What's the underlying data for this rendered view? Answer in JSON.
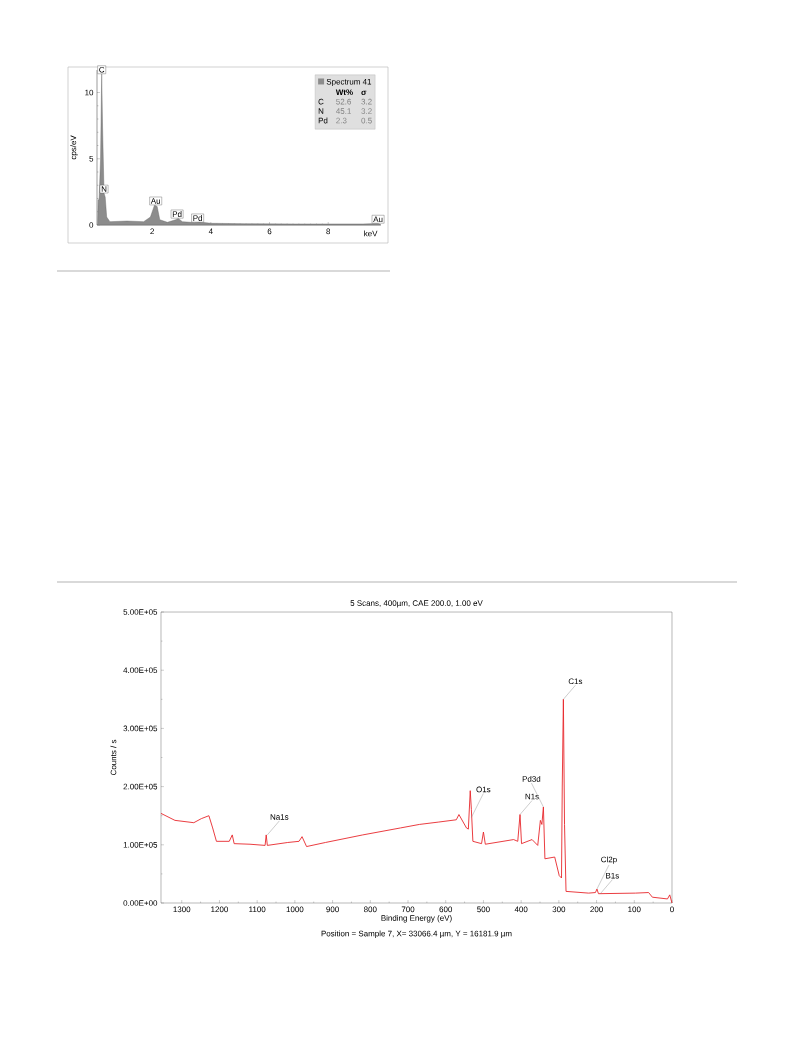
{
  "chart_data": [
    {
      "type": "area",
      "ylabel": "cps/eV",
      "xlabel": "keV",
      "legend": "top right",
      "xlim": [
        0.12,
        9.8
      ],
      "ylim": [
        0,
        11.7
      ],
      "xticks": [
        2,
        4,
        6,
        8
      ],
      "yticks": [
        0,
        5,
        10
      ],
      "x": [
        0.14,
        0.16,
        0.19,
        0.24,
        0.28,
        0.31,
        0.36,
        0.4,
        0.45,
        0.56,
        1.14,
        1.71,
        1.94,
        2.08,
        2.17,
        2.26,
        2.52,
        2.8,
        2.89,
        3.03,
        3.44,
        3.61,
        4.01,
        5.16,
        6.89,
        9.18,
        9.7,
        9.78
      ],
      "series": [
        {
          "name": "Spectrum 41",
          "color": "#8c8c8c",
          "values": [
            0,
            1.9,
            1.9,
            4.9,
            11.4,
            7.4,
            2.4,
            2.1,
            0.6,
            0.25,
            0.3,
            0.25,
            0.6,
            1.5,
            1.4,
            0.4,
            0.2,
            0.4,
            0.5,
            0.25,
            0.18,
            0.22,
            0.13,
            0.1,
            0.08,
            0.08,
            0.12,
            0.03
          ]
        }
      ],
      "annotations": [
        {
          "text": "C",
          "x": 0.28,
          "y": 11.4
        },
        {
          "text": "N",
          "x": 0.36,
          "y": 2.4
        },
        {
          "text": "Au",
          "x": 2.12,
          "y": 1.5
        },
        {
          "text": "Pd",
          "x": 2.85,
          "y": 0.5
        },
        {
          "text": "Pd",
          "x": 3.55,
          "y": 0.2
        },
        {
          "text": "Au",
          "x": 9.7,
          "y": 0.12
        },
        "Wt%",
        "σ",
        "C",
        "52.6",
        "3.2",
        "N",
        "45.1",
        "3.2",
        "Pd",
        "2.3",
        "0.5"
      ]
    },
    {
      "type": "line",
      "title": "5 Scans,  400µm,  CAE 200.0,  1.00 eV",
      "xlabel": "Binding Energy (eV)",
      "ylabel": "Counts / s",
      "xlim": [
        1355,
        0
      ],
      "ylim": [
        0,
        500000
      ],
      "xticks": [
        1300,
        1200,
        1100,
        1000,
        900,
        800,
        700,
        600,
        500,
        400,
        300,
        200,
        100,
        0
      ],
      "yticks": [
        {
          "value": 0,
          "label": "0.00E+00"
        },
        {
          "value": 100000,
          "label": "1.00E+05"
        },
        {
          "value": 200000,
          "label": "2.00E+05"
        },
        {
          "value": 300000,
          "label": "3.00E+05"
        },
        {
          "value": 400000,
          "label": "4.00E+05"
        },
        {
          "value": 500000,
          "label": "5.00E+05"
        }
      ],
      "x": [
        1355,
        1318,
        1268,
        1248,
        1228,
        1218,
        1208,
        1174,
        1166,
        1161,
        1119,
        1079,
        1076,
        1073,
        1019,
        989,
        981,
        969,
        919,
        820,
        720,
        670,
        620,
        572,
        565,
        545,
        540,
        535,
        532,
        528,
        505,
        500,
        495,
        420,
        409,
        403,
        399,
        371,
        356,
        349,
        345,
        341,
        337,
        311,
        299,
        293,
        291,
        288,
        285,
        281,
        221,
        203,
        199,
        195,
        97,
        62,
        52,
        12,
        6,
        0
      ],
      "series": [
        {
          "color": "#e8262b",
          "values": [
            154000,
            142000,
            138000,
            145000,
            150000,
            129000,
            106000,
            106000,
            117000,
            102000,
            101000,
            99000,
            117000,
            99000,
            104000,
            106000,
            114000,
            97000,
            104000,
            117000,
            129000,
            135000,
            139000,
            143000,
            152000,
            129000,
            127000,
            193000,
            161000,
            106000,
            102000,
            122000,
            101000,
            109000,
            106000,
            152000,
            102000,
            109000,
            99000,
            142000,
            135000,
            165000,
            76000,
            79000,
            47000,
            43000,
            201000,
            350000,
            135000,
            20000,
            17000,
            18000,
            24000,
            16000,
            17000,
            18000,
            10000,
            7000,
            14000,
            0
          ]
        }
      ],
      "annotations": [
        {
          "text": "Na1s",
          "x": 1073,
          "y": 117000
        },
        {
          "text": "O1s",
          "x": 532,
          "y": 147000
        },
        {
          "text": "N1s",
          "x": 403,
          "y": 152000
        },
        {
          "text": "Pd3d",
          "x": 341,
          "y": 165000
        },
        {
          "text": "C1s",
          "x": 288,
          "y": 350000
        },
        {
          "text": "Cl2p",
          "x": 199,
          "y": 24000
        },
        {
          "text": "B1s",
          "x": 190,
          "y": 16000
        },
        "Position = Sample 7, X= 33066.4 µm, Y = 16181.9 µm"
      ]
    }
  ]
}
